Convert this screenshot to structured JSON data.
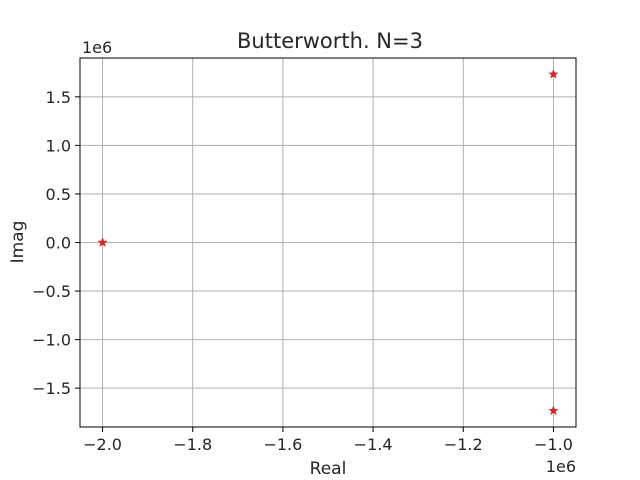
{
  "chart_data": {
    "type": "scatter",
    "title": "Butterworth. N=3",
    "xlabel": "Real",
    "ylabel": "Imag",
    "x_offset_text": "1e6",
    "y_offset_text": "1e6",
    "xlim": [
      -2.05,
      -0.95
    ],
    "ylim": [
      -1.9,
      1.9
    ],
    "xticks": [
      -2.0,
      -1.8,
      -1.6,
      -1.4,
      -1.2,
      -1.0
    ],
    "xtick_labels": [
      "−2.0",
      "−1.8",
      "−1.6",
      "−1.4",
      "−1.2",
      "−1.0"
    ],
    "yticks": [
      1.5,
      1.0,
      0.5,
      0.0,
      -0.5,
      -1.0,
      -1.5
    ],
    "ytick_labels": [
      "1.5",
      "1.0",
      "0.5",
      "0.0",
      "−0.5",
      "−1.0",
      "−1.5"
    ],
    "grid": true,
    "marker": "star",
    "color": "#d62728",
    "points": [
      {
        "x": -2.0,
        "y": 0.0
      },
      {
        "x": -1.0,
        "y": 1.732
      },
      {
        "x": -1.0,
        "y": -1.732
      }
    ]
  }
}
